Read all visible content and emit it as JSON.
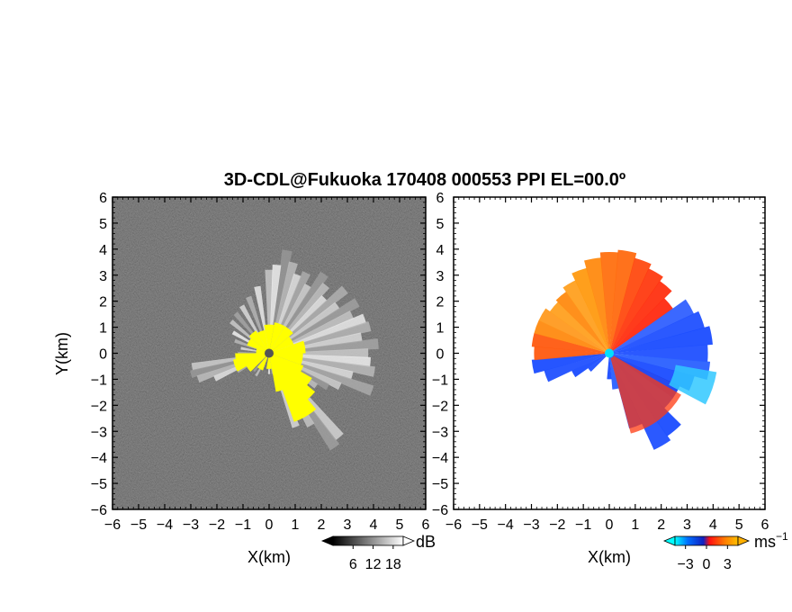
{
  "chart_data": {
    "title": "3D-CDL@Fukuoka 170408 000553 PPI EL=00.0º",
    "panels": [
      {
        "type": "heatmap",
        "quantity": "reflectivity",
        "xlabel": "X(km)",
        "ylabel": "Y(km)",
        "xlim": [
          -6,
          6
        ],
        "ylim": [
          -6,
          6
        ],
        "xticks": [
          "−6",
          "−5",
          "−4",
          "−3",
          "−2",
          "−1",
          "0",
          "1",
          "2",
          "3",
          "4",
          "5",
          "6"
        ],
        "yticks": [
          "6",
          "5",
          "4",
          "3",
          "2",
          "1",
          "0",
          "−1",
          "−2",
          "−3",
          "−4",
          "−5",
          "−6"
        ],
        "colorbar": {
          "unit": "dB",
          "ticks": [
            "6",
            "12",
            "18"
          ],
          "tick_values": [
            6,
            12,
            18
          ],
          "range": [
            0,
            21
          ],
          "colors": [
            "#000000",
            "#ffffff"
          ]
        },
        "highlight_color": "#ffff00",
        "background_color": "#2a2a2a"
      },
      {
        "type": "heatmap",
        "quantity": "doppler velocity",
        "xlabel": "X(km)",
        "ylabel": "",
        "xlim": [
          -6,
          6
        ],
        "ylim": [
          -6,
          6
        ],
        "xticks": [
          "−6",
          "−5",
          "−4",
          "−3",
          "−2",
          "−1",
          "0",
          "1",
          "2",
          "3",
          "4",
          "5",
          "6"
        ],
        "colorbar": {
          "unit": "ms",
          "unit_exp": "−1",
          "ticks": [
            "−3",
            "0",
            "3"
          ],
          "tick_values": [
            -3,
            0,
            3
          ],
          "range": [
            -4.5,
            4.5
          ],
          "colors": [
            "#00ffff",
            "#0060ff",
            "#1020c0",
            "#ff1010",
            "#ff8000",
            "#ffb000"
          ]
        },
        "approach_color": "#1a4cff",
        "recede_color": "#ff5a10"
      }
    ]
  }
}
